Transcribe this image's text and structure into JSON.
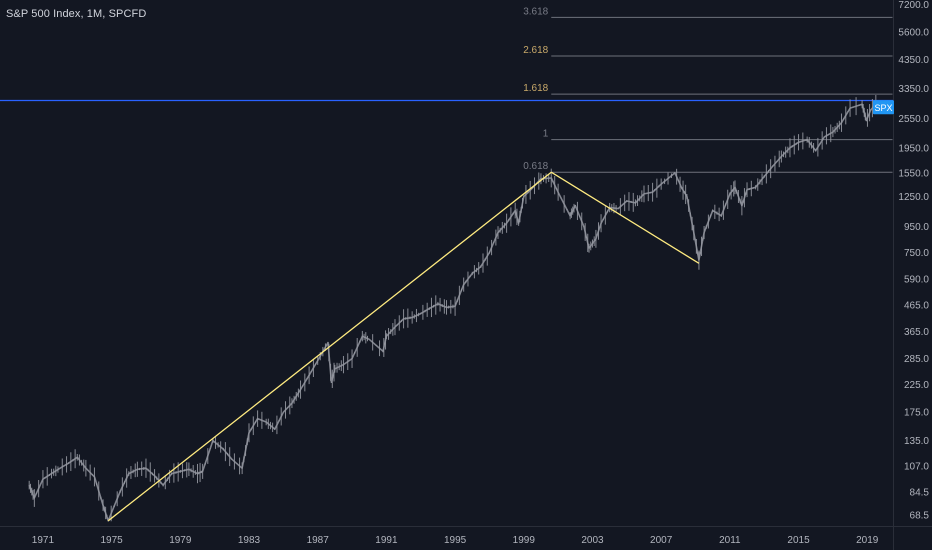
{
  "header": {
    "title": "S&P 500 Index, 1M, SPCFD"
  },
  "chart_data": {
    "type": "line",
    "title": "S&P 500 Index, 1M, SPCFD",
    "symbol": "SPX",
    "interval": "1M",
    "scale": "log",
    "ylim": [
      62,
      7500
    ],
    "xlim": [
      1968.5,
      2020.5
    ],
    "y_ticks": [
      "7200.0",
      "5600.0",
      "4350.0",
      "3350.0",
      "2550.0",
      "1950.0",
      "1550.0",
      "1250.0",
      "950.0",
      "750.0",
      "590.0",
      "465.0",
      "365.0",
      "285.0",
      "225.0",
      "175.0",
      "135.0",
      "107.0",
      "84.5",
      "68.5"
    ],
    "x_ticks": [
      "1971",
      "1975",
      "1979",
      "1983",
      "1987",
      "1991",
      "1995",
      "1999",
      "2003",
      "2007",
      "2011",
      "2015",
      "2019"
    ],
    "price_series": {
      "name": "SPX",
      "x": [
        1970.2,
        1970.5,
        1971.0,
        1971.5,
        1972.0,
        1972.5,
        1973.0,
        1973.5,
        1974.0,
        1974.5,
        1974.8,
        1975.5,
        1976.0,
        1976.5,
        1977.0,
        1977.5,
        1978.0,
        1978.5,
        1979.0,
        1979.5,
        1980.0,
        1980.3,
        1980.9,
        1981.5,
        1982.0,
        1982.6,
        1983.0,
        1983.5,
        1984.0,
        1984.5,
        1985.0,
        1985.5,
        1986.0,
        1986.5,
        1987.0,
        1987.6,
        1987.8,
        1988.0,
        1988.5,
        1989.0,
        1989.6,
        1990.0,
        1990.8,
        1991.0,
        1991.5,
        1992.0,
        1992.5,
        1993.0,
        1993.5,
        1994.0,
        1994.5,
        1995.0,
        1995.5,
        1996.0,
        1996.5,
        1997.0,
        1997.5,
        1998.0,
        1998.5,
        1998.7,
        1999.0,
        1999.5,
        2000.0,
        2000.6,
        2001.0,
        2001.7,
        2002.0,
        2002.5,
        2002.8,
        2003.2,
        2003.5,
        2004.0,
        2004.5,
        2005.0,
        2005.5,
        2006.0,
        2006.5,
        2007.0,
        2007.8,
        2008.2,
        2008.5,
        2008.9,
        2009.2,
        2009.5,
        2010.0,
        2010.5,
        2011.0,
        2011.3,
        2011.7,
        2012.0,
        2012.5,
        2013.0,
        2013.5,
        2014.0,
        2014.5,
        2015.0,
        2015.5,
        2016.0,
        2016.5,
        2017.0,
        2017.5,
        2018.0,
        2018.7,
        2018.95,
        2019.2,
        2019.6
      ],
      "y": [
        90,
        80,
        95,
        100,
        105,
        110,
        116,
        105,
        97,
        75,
        65,
        85,
        100,
        104,
        105,
        98,
        90,
        100,
        102,
        104,
        100,
        102,
        135,
        125,
        114,
        105,
        145,
        165,
        160,
        150,
        175,
        190,
        215,
        245,
        280,
        330,
        230,
        260,
        270,
        285,
        350,
        340,
        305,
        350,
        380,
        410,
        415,
        430,
        450,
        470,
        455,
        460,
        560,
        620,
        660,
        750,
        900,
        980,
        1100,
        980,
        1250,
        1350,
        1470,
        1480,
        1300,
        1050,
        1150,
        950,
        780,
        850,
        980,
        1130,
        1120,
        1200,
        1180,
        1280,
        1300,
        1400,
        1550,
        1350,
        1250,
        900,
        700,
        900,
        1100,
        1050,
        1280,
        1360,
        1150,
        1330,
        1360,
        1500,
        1650,
        1800,
        1950,
        2050,
        2100,
        1900,
        2150,
        2250,
        2450,
        2800,
        2900,
        2500,
        2750,
        2950
      ]
    },
    "trend_lines": [
      {
        "from": [
          1974.8,
          65
        ],
        "to": [
          2000.6,
          1560
        ]
      },
      {
        "from": [
          2000.6,
          1560
        ],
        "to": [
          2009.2,
          680
        ]
      }
    ],
    "fib_levels": [
      {
        "label": "0.618",
        "price": 1560,
        "color": "#787b86"
      },
      {
        "label": "1",
        "price": 2100,
        "color": "#787b86"
      },
      {
        "label": "1.618",
        "price": 3180,
        "color": "#c8a96a"
      },
      {
        "label": "2.618",
        "price": 4500,
        "color": "#c8a96a"
      },
      {
        "label": "3.618",
        "price": 6400,
        "color": "#787b86"
      }
    ],
    "horizontal_line": {
      "price": 3000,
      "color": "#2962ff"
    },
    "price_label": {
      "text": "SPX",
      "price": 2820,
      "color": "#2196f3"
    },
    "colors": {
      "background": "#131722",
      "price": "#9598a1",
      "trend": "#ffeb80",
      "fib_right": "#9598a1"
    }
  }
}
